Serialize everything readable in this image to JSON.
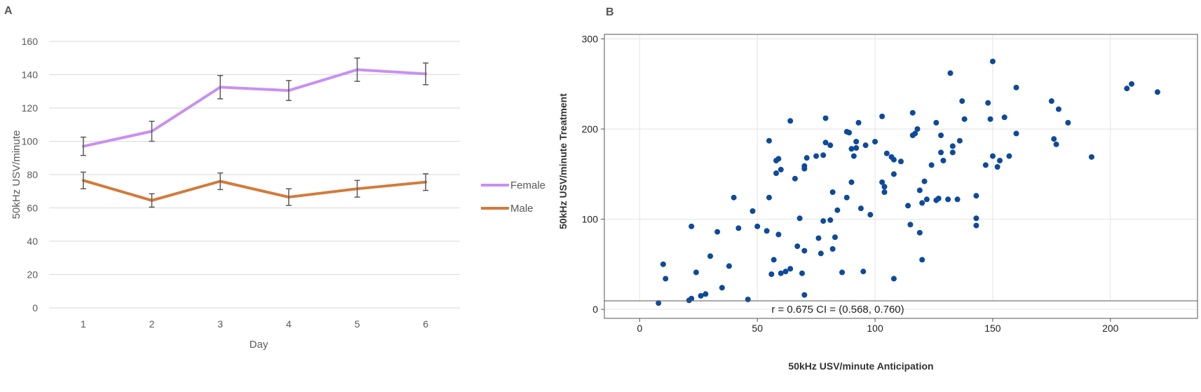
{
  "chart_data": [
    {
      "panel": "A",
      "type": "line",
      "xlabel": "Day",
      "ylabel": "50kHz USV/minute",
      "categories": [
        "1",
        "2",
        "3",
        "4",
        "5",
        "6"
      ],
      "ylim": [
        0,
        160
      ],
      "yticks": [
        0,
        20,
        40,
        60,
        80,
        100,
        120,
        140,
        160
      ],
      "grid": true,
      "legend_position": "right",
      "series": [
        {
          "name": "Female",
          "color": "#c990f2",
          "values": [
            97,
            106,
            132.5,
            130.5,
            143,
            140.5
          ],
          "errors": [
            5.5,
            6,
            7,
            6,
            7,
            6.5
          ]
        },
        {
          "name": "Male",
          "color": "#d47a3a",
          "values": [
            76.5,
            64.5,
            76,
            66.5,
            71.5,
            75.5
          ],
          "errors": [
            5,
            4,
            5,
            5,
            5,
            5
          ]
        }
      ]
    },
    {
      "panel": "B",
      "type": "scatter",
      "xlabel": "50kHz USV/minute Anticipation",
      "ylabel": "50kHz USV/minute Treatment",
      "xlim": [
        -15,
        237
      ],
      "ylim": [
        -10,
        305
      ],
      "xticks": [
        0,
        50,
        100,
        150,
        200
      ],
      "yticks": [
        0,
        100,
        200,
        300
      ],
      "grid": true,
      "point_color": "#0b4a9e",
      "annotation": "r = 0.675  CI = (0.568, 0.760)",
      "points": [
        [
          8,
          7
        ],
        [
          10,
          50
        ],
        [
          11,
          34
        ],
        [
          21,
          10
        ],
        [
          22,
          12
        ],
        [
          22,
          92
        ],
        [
          24,
          41
        ],
        [
          26,
          15
        ],
        [
          28,
          17
        ],
        [
          30,
          59
        ],
        [
          33,
          86
        ],
        [
          35,
          24
        ],
        [
          38,
          48
        ],
        [
          40,
          124
        ],
        [
          42,
          90
        ],
        [
          46,
          11
        ],
        [
          48,
          109
        ],
        [
          50,
          92
        ],
        [
          54,
          87
        ],
        [
          55,
          187
        ],
        [
          55,
          124
        ],
        [
          56,
          39
        ],
        [
          57,
          55
        ],
        [
          58,
          151
        ],
        [
          58,
          165
        ],
        [
          59,
          167
        ],
        [
          59,
          83
        ],
        [
          60,
          155
        ],
        [
          60,
          40
        ],
        [
          62,
          42
        ],
        [
          64,
          45
        ],
        [
          64,
          209
        ],
        [
          66,
          145
        ],
        [
          67,
          70
        ],
        [
          68,
          101
        ],
        [
          69,
          40
        ],
        [
          70,
          16
        ],
        [
          70,
          65
        ],
        [
          70,
          159
        ],
        [
          70,
          156
        ],
        [
          71,
          168
        ],
        [
          75,
          170
        ],
        [
          76,
          79
        ],
        [
          77,
          62
        ],
        [
          78,
          98
        ],
        [
          78,
          171
        ],
        [
          79,
          185
        ],
        [
          79,
          212
        ],
        [
          81,
          182
        ],
        [
          81,
          99
        ],
        [
          82,
          130
        ],
        [
          82,
          67
        ],
        [
          83,
          80
        ],
        [
          84,
          110
        ],
        [
          86,
          41
        ],
        [
          88,
          124
        ],
        [
          88,
          197
        ],
        [
          89,
          196
        ],
        [
          90,
          141
        ],
        [
          90,
          178
        ],
        [
          91,
          170
        ],
        [
          92,
          186
        ],
        [
          92,
          179
        ],
        [
          93,
          207
        ],
        [
          94,
          112
        ],
        [
          95,
          42
        ],
        [
          96,
          182
        ],
        [
          98,
          105
        ],
        [
          100,
          186
        ],
        [
          103,
          214
        ],
        [
          103,
          141
        ],
        [
          104,
          130
        ],
        [
          104,
          136
        ],
        [
          105,
          173
        ],
        [
          107,
          169
        ],
        [
          108,
          34
        ],
        [
          108,
          166
        ],
        [
          108,
          150
        ],
        [
          111,
          164
        ],
        [
          114,
          115
        ],
        [
          115,
          94
        ],
        [
          116,
          193
        ],
        [
          116,
          218
        ],
        [
          117,
          195
        ],
        [
          118,
          200
        ],
        [
          119,
          132
        ],
        [
          119,
          85
        ],
        [
          120,
          55
        ],
        [
          120,
          118
        ],
        [
          121,
          142
        ],
        [
          122,
          122
        ],
        [
          124,
          160
        ],
        [
          126,
          207
        ],
        [
          126,
          121
        ],
        [
          127,
          123
        ],
        [
          128,
          174
        ],
        [
          128,
          193
        ],
        [
          129,
          165
        ],
        [
          131,
          122
        ],
        [
          132,
          262
        ],
        [
          133,
          174
        ],
        [
          133,
          181
        ],
        [
          135,
          122
        ],
        [
          136,
          187
        ],
        [
          137,
          231
        ],
        [
          138,
          211
        ],
        [
          143,
          126
        ],
        [
          143,
          101
        ],
        [
          143,
          93
        ],
        [
          147,
          160
        ],
        [
          148,
          229
        ],
        [
          149,
          211
        ],
        [
          150,
          275
        ],
        [
          150,
          170
        ],
        [
          152,
          158
        ],
        [
          153,
          165
        ],
        [
          155,
          213
        ],
        [
          157,
          170
        ],
        [
          160,
          246
        ],
        [
          160,
          195
        ],
        [
          175,
          231
        ],
        [
          176,
          189
        ],
        [
          177,
          183
        ],
        [
          178,
          222
        ],
        [
          182,
          207
        ],
        [
          192,
          169
        ],
        [
          207,
          245
        ],
        [
          209,
          250
        ],
        [
          220,
          241
        ]
      ]
    }
  ],
  "panelA": {
    "letter": "A"
  },
  "panelB": {
    "letter": "B"
  }
}
